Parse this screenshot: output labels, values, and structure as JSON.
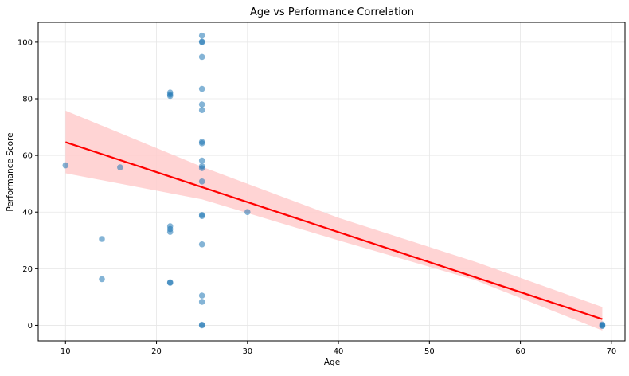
{
  "chart_data": {
    "type": "scatter",
    "title": "Age vs Performance Correlation",
    "xlabel": "Age",
    "ylabel": "Performance Score",
    "xlim": [
      7,
      71.5
    ],
    "ylim": [
      -5.5,
      107
    ],
    "xticks": [
      10,
      20,
      30,
      40,
      50,
      60,
      70
    ],
    "yticks": [
      0,
      20,
      40,
      60,
      80,
      100
    ],
    "grid": true,
    "colors": {
      "points": "#1f77b4",
      "regression_line": "#ff0000",
      "confidence_band": "#ffcccc",
      "grid": "#e6e6e6",
      "axes": "#000000"
    },
    "points": [
      {
        "x": 10,
        "y": 56.5
      },
      {
        "x": 14,
        "y": 30.5
      },
      {
        "x": 14,
        "y": 16.3
      },
      {
        "x": 16,
        "y": 55.8
      },
      {
        "x": 21.5,
        "y": 82.2
      },
      {
        "x": 21.5,
        "y": 81.5
      },
      {
        "x": 21.5,
        "y": 81
      },
      {
        "x": 21.5,
        "y": 35
      },
      {
        "x": 21.5,
        "y": 34
      },
      {
        "x": 21.5,
        "y": 33
      },
      {
        "x": 21.5,
        "y": 15.2
      },
      {
        "x": 21.5,
        "y": 15
      },
      {
        "x": 25,
        "y": 102.3
      },
      {
        "x": 25,
        "y": 100.2
      },
      {
        "x": 25,
        "y": 100
      },
      {
        "x": 25,
        "y": 94.8
      },
      {
        "x": 25,
        "y": 83.5
      },
      {
        "x": 25,
        "y": 78
      },
      {
        "x": 25,
        "y": 76
      },
      {
        "x": 25,
        "y": 64.8
      },
      {
        "x": 25,
        "y": 64.3
      },
      {
        "x": 25,
        "y": 58.2
      },
      {
        "x": 25,
        "y": 56.2
      },
      {
        "x": 25,
        "y": 55.5
      },
      {
        "x": 25,
        "y": 50.8
      },
      {
        "x": 25,
        "y": 39
      },
      {
        "x": 25,
        "y": 38.6
      },
      {
        "x": 25,
        "y": 28.6
      },
      {
        "x": 25,
        "y": 10.5
      },
      {
        "x": 25,
        "y": 8.3
      },
      {
        "x": 25,
        "y": 0.2
      },
      {
        "x": 25,
        "y": 0
      },
      {
        "x": 30,
        "y": 40
      },
      {
        "x": 69,
        "y": 0.3
      },
      {
        "x": 69,
        "y": 0
      },
      {
        "x": 69,
        "y": -0.2
      }
    ],
    "regression": {
      "x": [
        10,
        69
      ],
      "y": [
        64.7,
        2.2
      ]
    },
    "confidence_band": {
      "x": [
        10,
        25,
        40,
        55,
        69
      ],
      "upper": [
        75.8,
        56,
        38,
        22.5,
        6.5
      ],
      "lower": [
        53.7,
        44.5,
        30,
        16,
        -1.8
      ]
    }
  }
}
